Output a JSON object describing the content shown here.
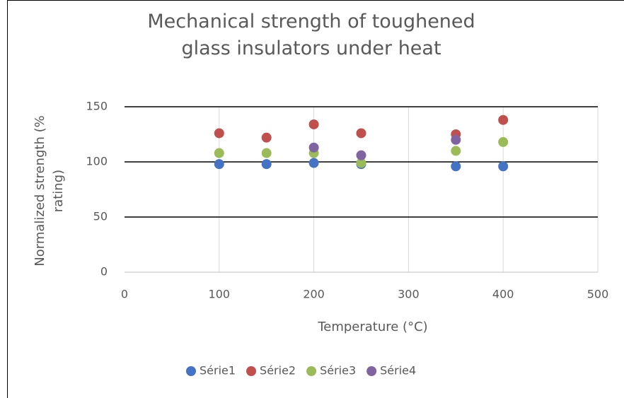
{
  "chart_data": {
    "type": "scatter",
    "title": "Mechanical strength of toughened glass insulators under heat",
    "x_label": "Temperature (°C)",
    "y_label": "Normalized strength (% rating)",
    "xlim": [
      0,
      500
    ],
    "xticks": [
      0,
      100,
      200,
      300,
      400,
      500
    ],
    "ylim": [
      0,
      150
    ],
    "yticks": [
      0,
      50,
      100,
      150
    ],
    "grid": true,
    "legend": "bottom",
    "series": [
      {
        "name": "Série1",
        "color": "#4472c4",
        "x": [
          100,
          150,
          200,
          250,
          350,
          400
        ],
        "values": [
          98,
          98,
          99,
          98,
          96,
          96
        ]
      },
      {
        "name": "Série2",
        "color": "#c0504d",
        "x": [
          100,
          150,
          200,
          250,
          350,
          400
        ],
        "values": [
          126,
          122,
          134,
          126,
          125,
          138
        ]
      },
      {
        "name": "Série3",
        "color": "#9bbb59",
        "x": [
          100,
          150,
          200,
          250,
          350,
          400
        ],
        "values": [
          108,
          108,
          108,
          99,
          110,
          118
        ]
      },
      {
        "name": "Série4",
        "color": "#8064a2",
        "x": [
          200,
          250,
          350
        ],
        "values": [
          113,
          106,
          120
        ]
      }
    ]
  }
}
